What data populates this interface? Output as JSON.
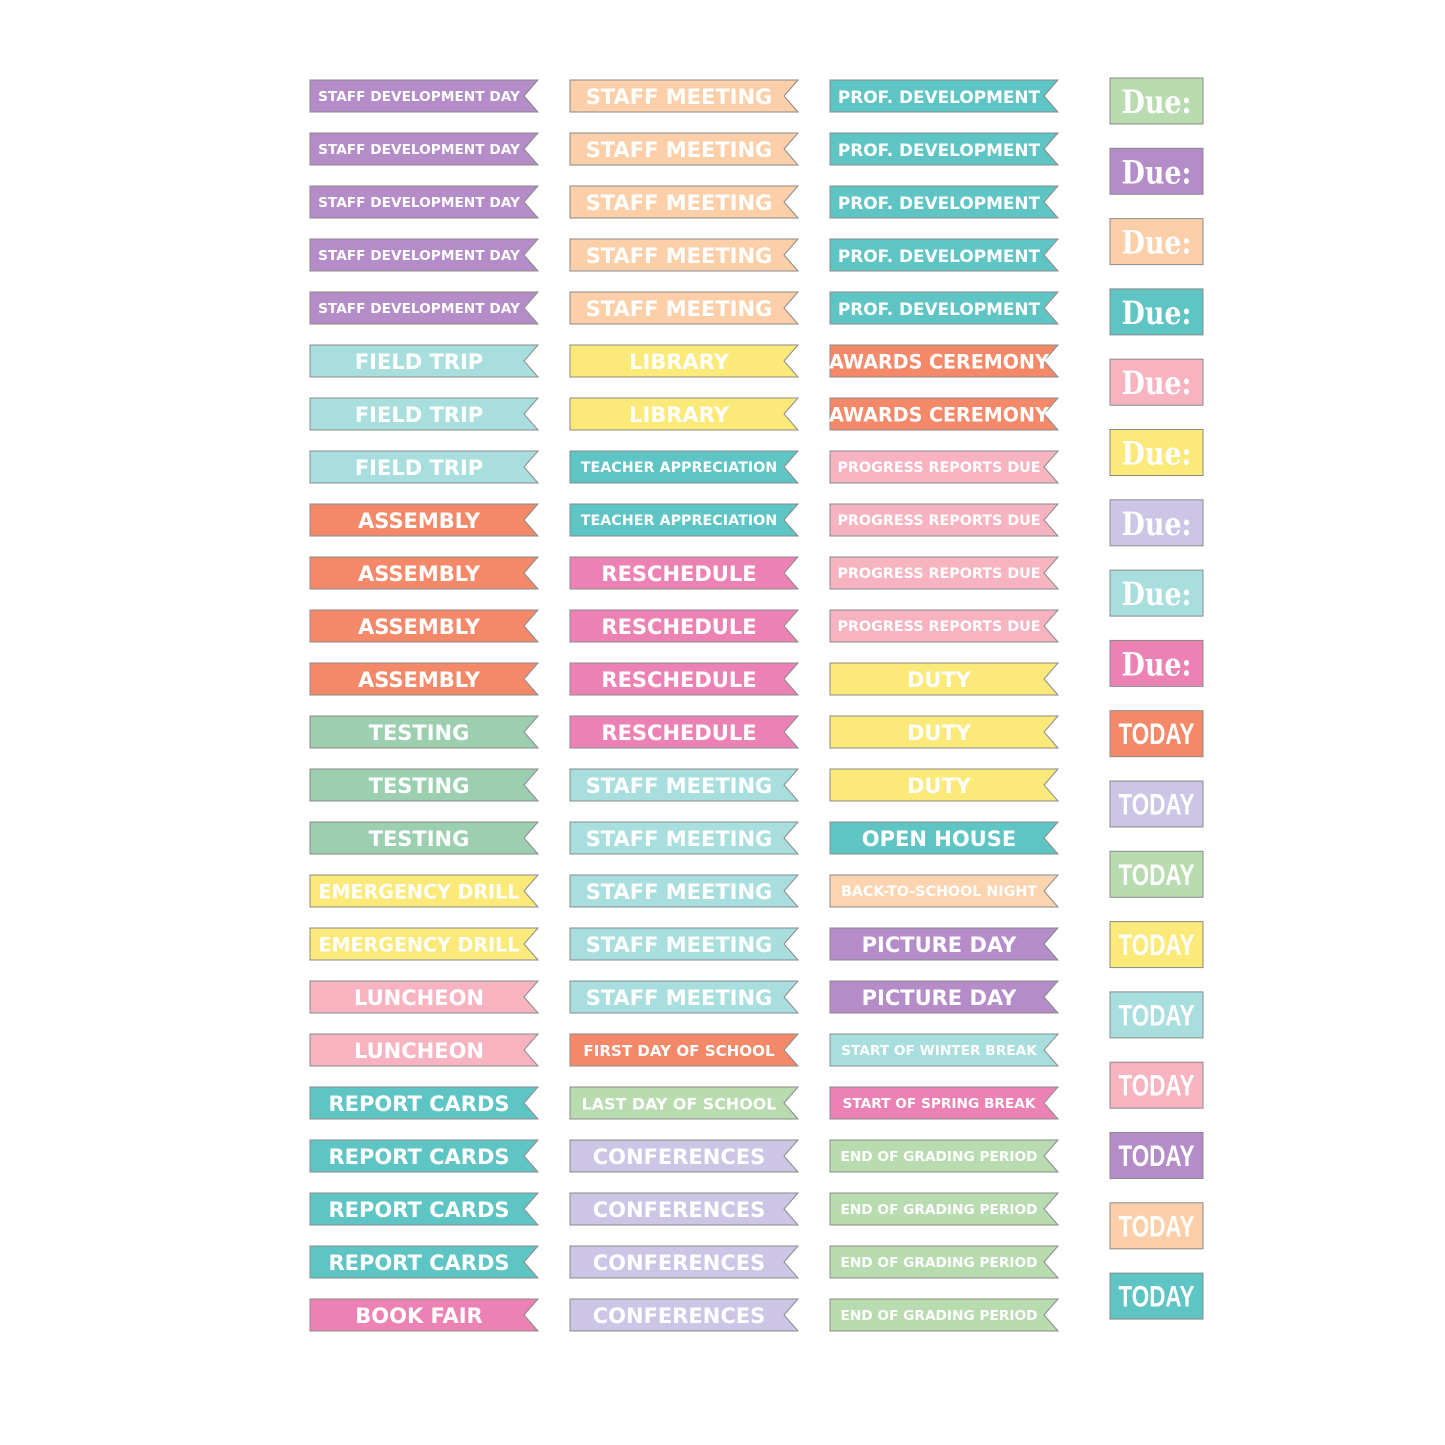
{
  "columns": [
    {
      "stickers": [
        {
          "label": "STAFF DEVELOPMENT DAY",
          "color": "#b48cc8"
        },
        {
          "label": "STAFF DEVELOPMENT DAY",
          "color": "#b48cc8"
        },
        {
          "label": "STAFF DEVELOPMENT DAY",
          "color": "#b48cc8"
        },
        {
          "label": "STAFF DEVELOPMENT DAY",
          "color": "#b48cc8"
        },
        {
          "label": "STAFF DEVELOPMENT DAY",
          "color": "#b48cc8"
        },
        {
          "label": "FIELD TRIP",
          "color": "#a8dede"
        },
        {
          "label": "FIELD TRIP",
          "color": "#a8dede"
        },
        {
          "label": "FIELD TRIP",
          "color": "#a8dede"
        },
        {
          "label": "ASSEMBLY",
          "color": "#f4896a"
        },
        {
          "label": "ASSEMBLY",
          "color": "#f4896a"
        },
        {
          "label": "ASSEMBLY",
          "color": "#f4896a"
        },
        {
          "label": "ASSEMBLY",
          "color": "#f4896a"
        },
        {
          "label": "TESTING",
          "color": "#9ccfb0"
        },
        {
          "label": "TESTING",
          "color": "#9ccfb0"
        },
        {
          "label": "TESTING",
          "color": "#9ccfb0"
        },
        {
          "label": "EMERGENCY DRILL",
          "color": "#fbe97a"
        },
        {
          "label": "EMERGENCY DRILL",
          "color": "#fbe97a"
        },
        {
          "label": "LUNCHEON",
          "color": "#f7b3c0"
        },
        {
          "label": "LUNCHEON",
          "color": "#f7b3c0"
        },
        {
          "label": "REPORT CARDS",
          "color": "#5ec4c4"
        },
        {
          "label": "REPORT CARDS",
          "color": "#5ec4c4"
        },
        {
          "label": "REPORT CARDS",
          "color": "#5ec4c4"
        },
        {
          "label": "REPORT CARDS",
          "color": "#5ec4c4"
        },
        {
          "label": "BOOK FAIR",
          "color": "#ec82b4"
        }
      ]
    },
    {
      "stickers": [
        {
          "label": "STAFF MEETING",
          "color": "#fccfa8"
        },
        {
          "label": "STAFF MEETING",
          "color": "#fccfa8"
        },
        {
          "label": "STAFF MEETING",
          "color": "#fccfa8"
        },
        {
          "label": "STAFF MEETING",
          "color": "#fccfa8"
        },
        {
          "label": "STAFF MEETING",
          "color": "#fccfa8"
        },
        {
          "label": "LIBRARY",
          "color": "#fbe97a"
        },
        {
          "label": "LIBRARY",
          "color": "#fbe97a"
        },
        {
          "label": "TEACHER APPRECIATION",
          "color": "#5ec4c4"
        },
        {
          "label": "TEACHER APPRECIATION",
          "color": "#5ec4c4"
        },
        {
          "label": "RESCHEDULE",
          "color": "#ec82b4"
        },
        {
          "label": "RESCHEDULE",
          "color": "#ec82b4"
        },
        {
          "label": "RESCHEDULE",
          "color": "#ec82b4"
        },
        {
          "label": "RESCHEDULE",
          "color": "#ec82b4"
        },
        {
          "label": "STAFF MEETING",
          "color": "#a8dede"
        },
        {
          "label": "STAFF MEETING",
          "color": "#a8dede"
        },
        {
          "label": "STAFF MEETING",
          "color": "#a8dede"
        },
        {
          "label": "STAFF MEETING",
          "color": "#a8dede"
        },
        {
          "label": "STAFF MEETING",
          "color": "#a8dede"
        },
        {
          "label": "FIRST DAY OF SCHOOL",
          "color": "#f4896a"
        },
        {
          "label": "LAST DAY OF SCHOOL",
          "color": "#b8dbb0"
        },
        {
          "label": "CONFERENCES",
          "color": "#cdc5e6"
        },
        {
          "label": "CONFERENCES",
          "color": "#cdc5e6"
        },
        {
          "label": "CONFERENCES",
          "color": "#cdc5e6"
        },
        {
          "label": "CONFERENCES",
          "color": "#cdc5e6"
        }
      ]
    },
    {
      "stickers": [
        {
          "label": "PROF. DEVELOPMENT",
          "color": "#5ec4c4"
        },
        {
          "label": "PROF. DEVELOPMENT",
          "color": "#5ec4c4"
        },
        {
          "label": "PROF. DEVELOPMENT",
          "color": "#5ec4c4"
        },
        {
          "label": "PROF. DEVELOPMENT",
          "color": "#5ec4c4"
        },
        {
          "label": "PROF. DEVELOPMENT",
          "color": "#5ec4c4"
        },
        {
          "label": "AWARDS CEREMONY",
          "color": "#f4896a"
        },
        {
          "label": "AWARDS CEREMONY",
          "color": "#f4896a"
        },
        {
          "label": "PROGRESS REPORTS DUE",
          "color": "#f7b3c0"
        },
        {
          "label": "PROGRESS REPORTS DUE",
          "color": "#f7b3c0"
        },
        {
          "label": "PROGRESS REPORTS DUE",
          "color": "#f7b3c0"
        },
        {
          "label": "PROGRESS REPORTS DUE",
          "color": "#f7b3c0"
        },
        {
          "label": "DUTY",
          "color": "#fbe97a"
        },
        {
          "label": "DUTY",
          "color": "#fbe97a"
        },
        {
          "label": "DUTY",
          "color": "#fbe97a"
        },
        {
          "label": "OPEN HOUSE",
          "color": "#5ec4c4"
        },
        {
          "label": "BACK-TO-SCHOOL NIGHT",
          "color": "#fcd4b0"
        },
        {
          "label": "PICTURE DAY",
          "color": "#b48cc8"
        },
        {
          "label": "PICTURE DAY",
          "color": "#b48cc8"
        },
        {
          "label": "START OF WINTER BREAK",
          "color": "#a8dede"
        },
        {
          "label": "START OF SPRING BREAK",
          "color": "#ec82b4"
        },
        {
          "label": "END OF GRADING PERIOD",
          "color": "#b8dbb0"
        },
        {
          "label": "END OF GRADING PERIOD",
          "color": "#b8dbb0"
        },
        {
          "label": "END OF GRADING PERIOD",
          "color": "#b8dbb0"
        },
        {
          "label": "END OF GRADING PERIOD",
          "color": "#b8dbb0"
        }
      ]
    }
  ],
  "tags": [
    {
      "label": "Due:",
      "color": "#b8dbb0"
    },
    {
      "label": "Due:",
      "color": "#b48cc8"
    },
    {
      "label": "Due:",
      "color": "#fccfa8"
    },
    {
      "label": "Due:",
      "color": "#5ec4c4"
    },
    {
      "label": "Due:",
      "color": "#f7b3c0"
    },
    {
      "label": "Due:",
      "color": "#fbe97a"
    },
    {
      "label": "Due:",
      "color": "#cdc5e6"
    },
    {
      "label": "Due:",
      "color": "#a8dede"
    },
    {
      "label": "Due:",
      "color": "#ec82b4"
    },
    {
      "label": "TODAY",
      "color": "#f4896a"
    },
    {
      "label": "TODAY",
      "color": "#cdc5e6"
    },
    {
      "label": "TODAY",
      "color": "#b8dbb0"
    },
    {
      "label": "TODAY",
      "color": "#fbe97a"
    },
    {
      "label": "TODAY",
      "color": "#a8dede"
    },
    {
      "label": "TODAY",
      "color": "#f7b3c0"
    },
    {
      "label": "TODAY",
      "color": "#b48cc8"
    },
    {
      "label": "TODAY",
      "color": "#fccfa8"
    },
    {
      "label": "TODAY",
      "color": "#5ec4c4"
    }
  ]
}
